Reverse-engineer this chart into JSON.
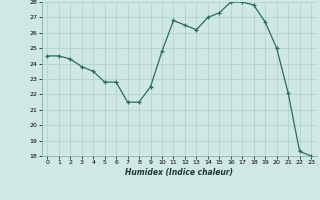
{
  "x": [
    0,
    1,
    2,
    3,
    4,
    5,
    6,
    7,
    8,
    9,
    10,
    11,
    12,
    13,
    14,
    15,
    16,
    17,
    18,
    19,
    20,
    21,
    22,
    23
  ],
  "y": [
    24.5,
    24.5,
    24.3,
    23.8,
    23.5,
    22.8,
    22.8,
    21.5,
    21.5,
    22.5,
    24.8,
    26.8,
    26.5,
    26.2,
    27.0,
    27.3,
    28.0,
    28.0,
    27.8,
    26.7,
    25.0,
    22.1,
    18.3,
    18.0
  ],
  "xlabel": "Humidex (Indice chaleur)",
  "ylim": [
    18,
    28
  ],
  "xlim": [
    -0.5,
    23.5
  ],
  "yticks": [
    18,
    19,
    20,
    21,
    22,
    23,
    24,
    25,
    26,
    27,
    28
  ],
  "xticks": [
    0,
    1,
    2,
    3,
    4,
    5,
    6,
    7,
    8,
    9,
    10,
    11,
    12,
    13,
    14,
    15,
    16,
    17,
    18,
    19,
    20,
    21,
    22,
    23
  ],
  "line_color": "#2d6b5e",
  "marker": "+",
  "bg_color": "#cfe8e4",
  "grid_major_color": "#b0ceca",
  "grid_minor_color": "#c5deda"
}
